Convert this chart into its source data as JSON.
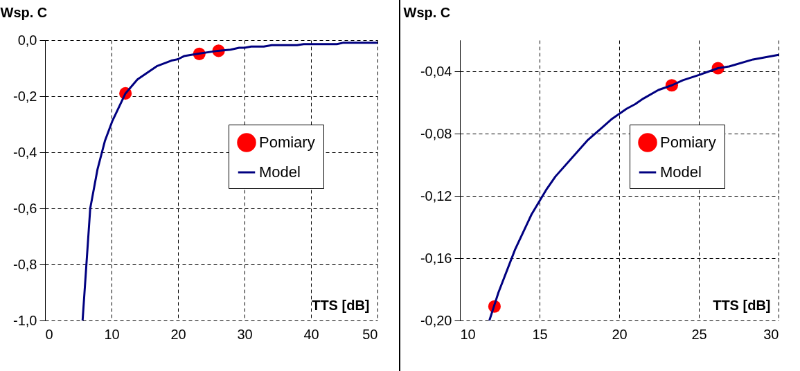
{
  "chart_data": [
    {
      "type": "line",
      "xlabel": "TTS [dB]",
      "ylabel": "Wsp. C",
      "xlim": [
        0,
        50
      ],
      "xticks": [
        0,
        10,
        20,
        30,
        40,
        50
      ],
      "ylim": [
        -1.0,
        0.0
      ],
      "yticks": [
        {
          "value": -1.0,
          "label": "-1,0"
        },
        {
          "value": -0.8,
          "label": "-0,8"
        },
        {
          "value": -0.6,
          "label": "-0,6"
        },
        {
          "value": -0.4,
          "label": "-0,4"
        },
        {
          "value": -0.2,
          "label": "-0,2"
        },
        {
          "value": 0.0,
          "label": "0,0"
        }
      ],
      "grid": true,
      "legend": "right",
      "series": [
        {
          "name": "Pomiary",
          "type": "scatter",
          "marker": "circle",
          "color": "#ff0000",
          "x": [
            12.1,
            23.2,
            26.1
          ],
          "values": [
            -0.19,
            -0.049,
            -0.038
          ]
        },
        {
          "name": "Model",
          "type": "line",
          "color": "#000080",
          "x": [
            5.65,
            6.8,
            7.9,
            9.0,
            10.1,
            12.1,
            13.9,
            16.8,
            19.0,
            20.0,
            20.9,
            23.1,
            26.0,
            27.9,
            29.2,
            30.0,
            31.0,
            32.9,
            34.1,
            37.9,
            38.9,
            43.9,
            44.9,
            50.0
          ],
          "values": [
            -1.0,
            -0.6,
            -0.46,
            -0.36,
            -0.29,
            -0.19,
            -0.14,
            -0.093,
            -0.073,
            -0.068,
            -0.057,
            -0.048,
            -0.038,
            -0.034,
            -0.027,
            -0.027,
            -0.023,
            -0.023,
            -0.018,
            -0.018,
            -0.014,
            -0.014,
            -0.009,
            -0.009
          ]
        }
      ]
    },
    {
      "type": "line",
      "xlabel": "TTS [dB]",
      "ylabel": "Wsp. C",
      "xlim": [
        10,
        30
      ],
      "xticks": [
        10,
        15,
        20,
        25,
        30
      ],
      "ylim": [
        -0.2,
        -0.02
      ],
      "yticks": [
        {
          "value": -0.2,
          "label": "-0,20"
        },
        {
          "value": -0.16,
          "label": "-0,16"
        },
        {
          "value": -0.12,
          "label": "-0,12"
        },
        {
          "value": -0.08,
          "label": "-0,08"
        },
        {
          "value": -0.04,
          "label": "-0,04"
        }
      ],
      "grid": true,
      "legend": "right",
      "series": [
        {
          "name": "Pomiary",
          "type": "scatter",
          "marker": "circle",
          "color": "#ff0000",
          "x": [
            12.17,
            23.3,
            26.2
          ],
          "values": [
            -0.191,
            -0.049,
            -0.038
          ]
        },
        {
          "name": "Model",
          "type": "line",
          "color": "#000080",
          "x": [
            11.85,
            12.42,
            13.46,
            14.49,
            15.45,
            16.0,
            18.0,
            18.96,
            19.5,
            20.47,
            21.0,
            21.5,
            22.46,
            23.3,
            24.0,
            25.0,
            26.2,
            26.9,
            28.4,
            30.0
          ],
          "values": [
            -0.2,
            -0.182,
            -0.1545,
            -0.132,
            -0.1156,
            -0.1075,
            -0.0844,
            -0.0758,
            -0.0709,
            -0.064,
            -0.0611,
            -0.0576,
            -0.052,
            -0.049,
            -0.0457,
            -0.0424,
            -0.038,
            -0.0369,
            -0.0324,
            -0.0294
          ]
        }
      ]
    }
  ]
}
